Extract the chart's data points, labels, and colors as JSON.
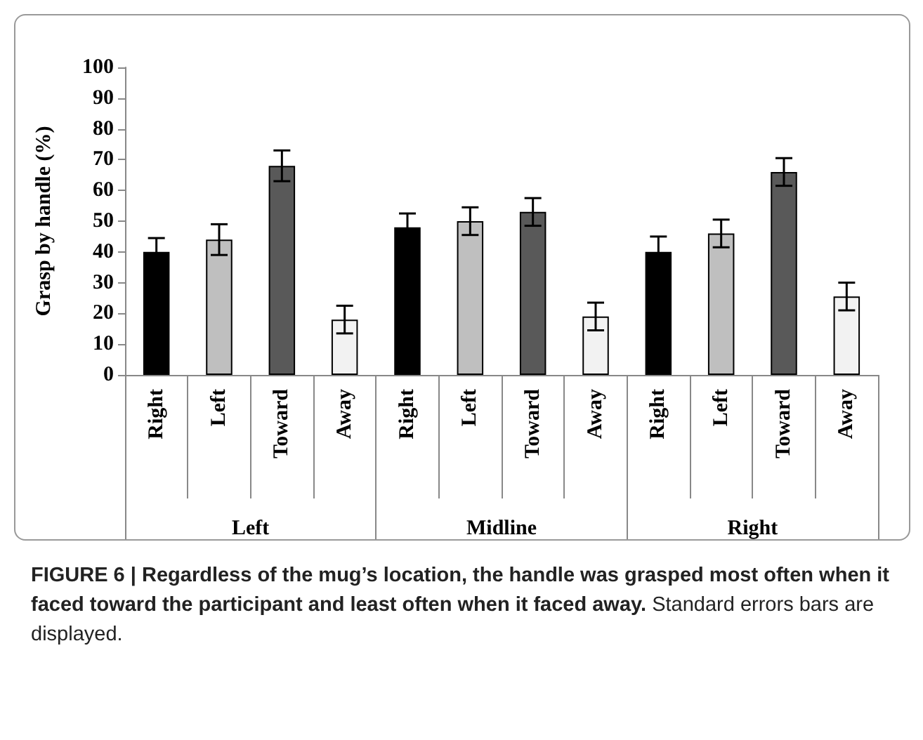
{
  "chart_data": {
    "type": "bar",
    "ylabel": "Grasp by handle (%)",
    "categories": [
      "Right",
      "Left",
      "Toward",
      "Away",
      "Right",
      "Left",
      "Toward",
      "Away",
      "Right",
      "Left",
      "Toward",
      "Away"
    ],
    "values": [
      40,
      44,
      68,
      18,
      48,
      50,
      53,
      19,
      40,
      46,
      66,
      25.5
    ],
    "errors": [
      4.5,
      5,
      5,
      4.5,
      4.5,
      4.5,
      4.5,
      4.5,
      5,
      4.5,
      4.5,
      4.5
    ],
    "colors": [
      "#000000",
      "#bfbfbf",
      "#595959",
      "#f2f2f2",
      "#000000",
      "#bfbfbf",
      "#595959",
      "#f2f2f2",
      "#000000",
      "#bfbfbf",
      "#595959",
      "#f2f2f2"
    ],
    "ylim": [
      0,
      100
    ],
    "yticks": [
      0,
      10,
      20,
      30,
      40,
      50,
      60,
      70,
      80,
      90,
      100
    ],
    "grid": false,
    "annotations": [
      "Left",
      "Midline",
      "Right",
      "FIGURE 6 | Regardless of the mug’s location, the handle was grasped most often when it faced toward the participant and least often when it faced away.",
      "Standard errors bars are displayed."
    ]
  }
}
